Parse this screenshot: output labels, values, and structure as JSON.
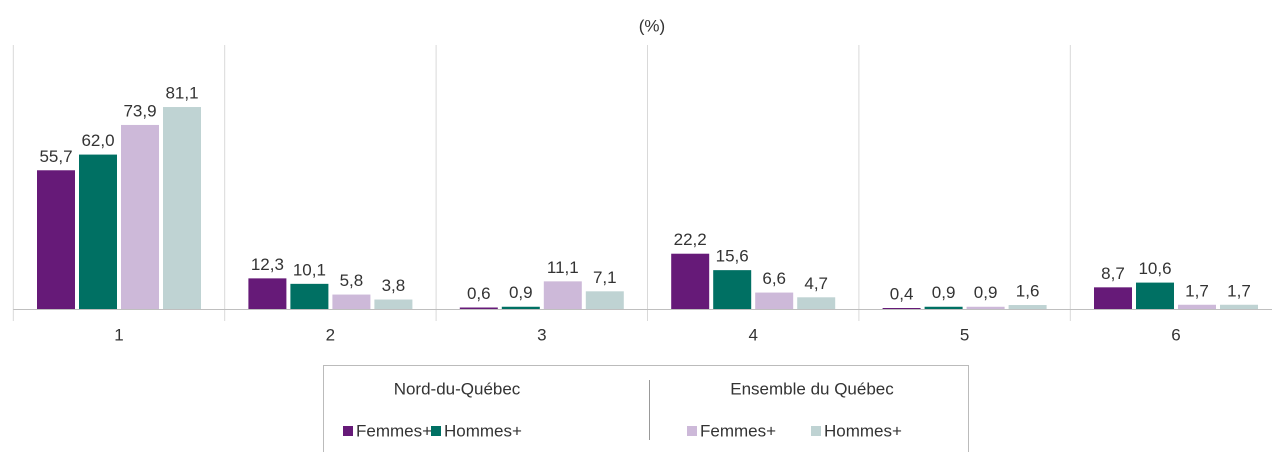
{
  "chart_data": {
    "type": "bar",
    "title": "(%)",
    "categories": [
      "1",
      "2",
      "3",
      "4",
      "5",
      "6"
    ],
    "ylim": [
      0,
      106
    ],
    "series": [
      {
        "name": "Femmes+",
        "group": "Nord-du-Québec",
        "color": "#661a78",
        "values": [
          55.7,
          12.3,
          0.6,
          22.2,
          0.4,
          8.7
        ],
        "value_labels": [
          "55,7",
          "12,3",
          "0,6",
          "22,2",
          "0,4",
          "8,7"
        ]
      },
      {
        "name": "Hommes+",
        "group": "Nord-du-Québec",
        "color": "#007063",
        "values": [
          62.0,
          10.1,
          0.9,
          15.6,
          0.9,
          10.6
        ],
        "value_labels": [
          "62,0",
          "10,1",
          "0,9",
          "15,6",
          "0,9",
          "10,6"
        ]
      },
      {
        "name": "Femmes+",
        "group": "Ensemble du Québec",
        "color": "#cdb9d9",
        "values": [
          73.9,
          5.8,
          11.1,
          6.6,
          0.9,
          1.7
        ],
        "value_labels": [
          "73,9",
          "5,8",
          "11,1",
          "6,6",
          "0,9",
          "1,7"
        ]
      },
      {
        "name": "Hommes+",
        "group": "Ensemble du Québec",
        "color": "#bfd3d3",
        "values": [
          81.1,
          3.8,
          7.1,
          4.7,
          1.6,
          1.7
        ],
        "value_labels": [
          "81,1",
          "3,8",
          "7,1",
          "4,7",
          "1,6",
          "1,7"
        ]
      }
    ]
  }
}
